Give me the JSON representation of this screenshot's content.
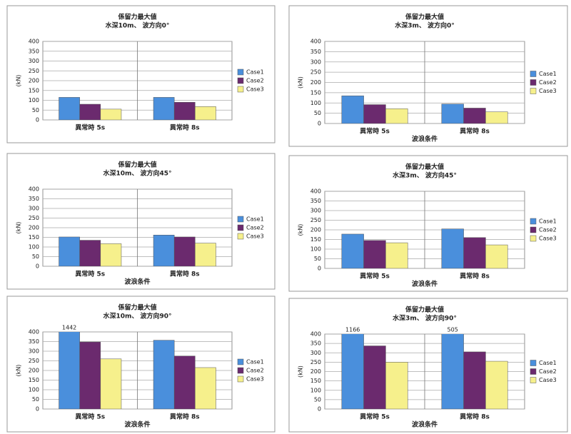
{
  "chart_data": [
    {
      "type": "bar",
      "title": "係留力最大値",
      "subtitle": "水深10m、 波方向0°",
      "y_label": "(kN)",
      "categories": [
        "異常時 5s",
        "異常時 8s"
      ],
      "series": [
        {
          "name": "Case1",
          "color": "#4a8fdc",
          "values": [
            115,
            115
          ]
        },
        {
          "name": "Case2",
          "color": "#6b2a6e",
          "values": [
            80,
            90
          ]
        },
        {
          "name": "Case3",
          "color": "#f6f08c",
          "values": [
            55,
            68
          ]
        }
      ],
      "ylim": [
        0,
        400
      ],
      "yticks": [
        0,
        50,
        100,
        150,
        200,
        250,
        300,
        350,
        400
      ],
      "grid": true,
      "legend": "right"
    },
    {
      "type": "bar",
      "title": "係留力最大値",
      "subtitle": "水深3m、 波方向0°",
      "y_label": "(kN)",
      "x_label": "波浪条件",
      "categories": [
        "異常時 5s",
        "異常時 8s"
      ],
      "series": [
        {
          "name": "Case1",
          "color": "#4a8fdc",
          "values": [
            135,
            95
          ]
        },
        {
          "name": "Case2",
          "color": "#6b2a6e",
          "values": [
            92,
            75
          ]
        },
        {
          "name": "Case3",
          "color": "#f6f08c",
          "values": [
            72,
            57
          ]
        }
      ],
      "ylim": [
        0,
        400
      ],
      "yticks": [
        0,
        50,
        100,
        150,
        200,
        250,
        300,
        350,
        400
      ],
      "grid": true,
      "legend": "right"
    },
    {
      "type": "bar",
      "title": "係留力最大値",
      "subtitle": "水深10m、 波方向45°",
      "y_label": "(kN)",
      "x_label": "波浪条件",
      "categories": [
        "異常時 5s",
        "異常時 8s"
      ],
      "series": [
        {
          "name": "Case1",
          "color": "#4a8fdc",
          "values": [
            152,
            162
          ]
        },
        {
          "name": "Case2",
          "color": "#6b2a6e",
          "values": [
            135,
            152
          ]
        },
        {
          "name": "Case3",
          "color": "#f6f08c",
          "values": [
            117,
            120
          ]
        }
      ],
      "ylim": [
        0,
        400
      ],
      "yticks": [
        0,
        50,
        100,
        150,
        200,
        250,
        300,
        350,
        400
      ],
      "grid": true,
      "legend": "right"
    },
    {
      "type": "bar",
      "title": "係留力最大値",
      "subtitle": "水深3m、 波方向45°",
      "y_label": "(kN)",
      "x_label": "波浪条件",
      "categories": [
        "異常時 5s",
        "異常時 8s"
      ],
      "series": [
        {
          "name": "Case1",
          "color": "#4a8fdc",
          "values": [
            178,
            205
          ]
        },
        {
          "name": "Case2",
          "color": "#6b2a6e",
          "values": [
            145,
            160
          ]
        },
        {
          "name": "Case3",
          "color": "#f6f08c",
          "values": [
            133,
            122
          ]
        }
      ],
      "ylim": [
        0,
        400
      ],
      "yticks": [
        0,
        50,
        100,
        150,
        200,
        250,
        300,
        350,
        400
      ],
      "grid": true,
      "legend": "right"
    },
    {
      "type": "bar",
      "title": "係留力最大値",
      "subtitle": "水深10m、 波方向90°",
      "y_label": "(kN)",
      "x_label": "波浪条件",
      "categories": [
        "異常時 5s",
        "異常時 8s"
      ],
      "series": [
        {
          "name": "Case1",
          "color": "#4a8fdc",
          "values": [
            1442,
            357
          ],
          "value_labels": [
            "1442",
            null
          ]
        },
        {
          "name": "Case2",
          "color": "#6b2a6e",
          "values": [
            348,
            275
          ]
        },
        {
          "name": "Case3",
          "color": "#f6f08c",
          "values": [
            260,
            215
          ]
        }
      ],
      "ylim": [
        0,
        400
      ],
      "yticks": [
        0,
        50,
        100,
        150,
        200,
        250,
        300,
        350,
        400
      ],
      "grid": true,
      "legend": "right"
    },
    {
      "type": "bar",
      "title": "係留力最大値",
      "subtitle": "水深3m、 波方向90°",
      "y_label": "(kN)",
      "x_label": "波浪条件",
      "categories": [
        "異常時 5s",
        "異常時 8s"
      ],
      "series": [
        {
          "name": "Case1",
          "color": "#4a8fdc",
          "values": [
            1166,
            505
          ],
          "value_labels": [
            "1166",
            "505"
          ]
        },
        {
          "name": "Case2",
          "color": "#6b2a6e",
          "values": [
            337,
            305
          ]
        },
        {
          "name": "Case3",
          "color": "#f6f08c",
          "values": [
            250,
            255
          ]
        }
      ],
      "ylim": [
        0,
        400
      ],
      "yticks": [
        0,
        50,
        100,
        150,
        200,
        250,
        300,
        350,
        400
      ],
      "grid": true,
      "legend": "right"
    }
  ]
}
